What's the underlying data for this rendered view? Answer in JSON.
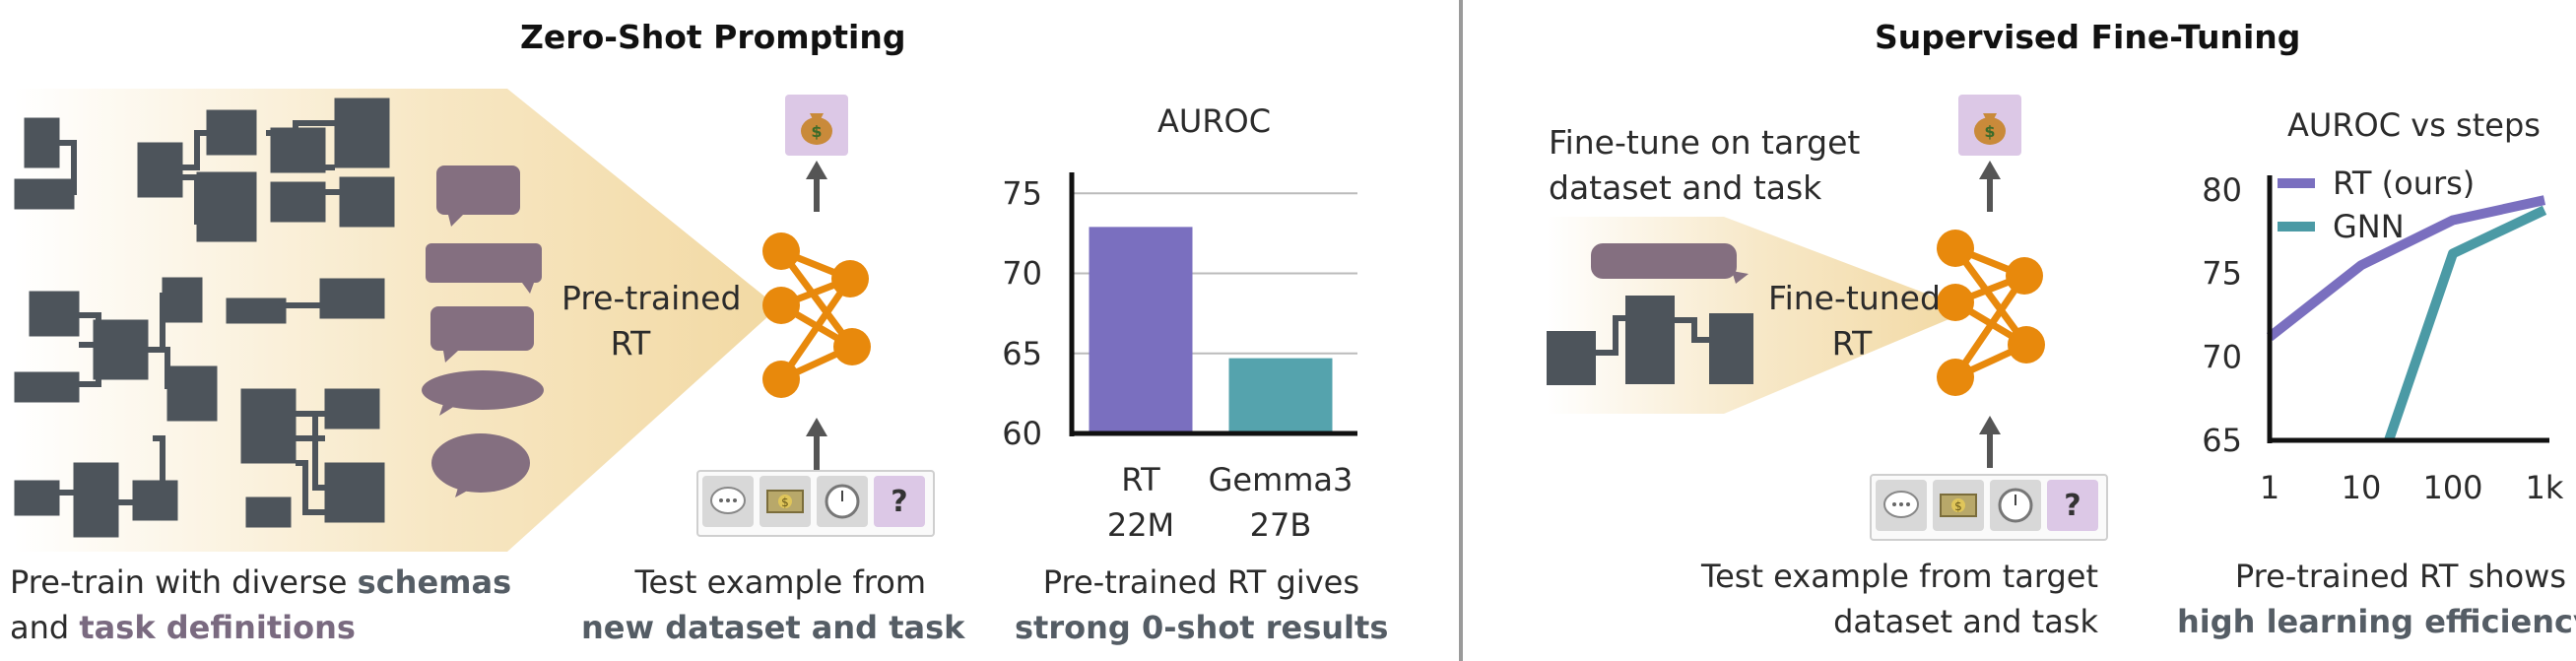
{
  "left": {
    "title": "Zero-Shot Prompting",
    "model_label": [
      "Pre-trained",
      "RT"
    ],
    "caption_pretrain": {
      "l1_pre": "Pre-train with diverse ",
      "l1_bold": "schemas",
      "l2_pre": "and ",
      "l2_bold": "task definitions"
    },
    "caption_test": {
      "l1": "Test example from",
      "l2_bold": "new dataset and task"
    },
    "caption_result": {
      "l1": "Pre-trained RT gives",
      "l2_bold": "strong 0-shot results"
    }
  },
  "right": {
    "title": "Supervised Fine-Tuning",
    "finetune_text": [
      "Fine-tune on target",
      "dataset and task"
    ],
    "model_label": [
      "Fine-tuned",
      "RT"
    ],
    "caption_test": {
      "l1": "Test example from target",
      "l2": "dataset and task"
    },
    "caption_result": {
      "l1": "Pre-trained RT shows",
      "l2_bold": "high learning efficiency"
    }
  },
  "icons": {
    "output": "money-bag-icon",
    "inputs": [
      "speech-bubble-icon",
      "money-icon",
      "clock-icon",
      "question-mark-icon"
    ],
    "question_mark": "?"
  },
  "colors": {
    "rt": "#7a6fbf",
    "gnn": "#4b9aa5",
    "gemma": "#55a3ad",
    "network": "#e8890c",
    "schema_block": "#4d545b",
    "bubble": "#846f80",
    "cone": "#f3dcaa",
    "output_box": "#dcc8e6"
  },
  "chart_data": [
    {
      "type": "bar",
      "title": "AUROC",
      "categories": [
        "RT 22M",
        "Gemma3 27B"
      ],
      "category_lines": [
        [
          "RT",
          "22M"
        ],
        [
          "Gemma3",
          "27B"
        ]
      ],
      "values": [
        72.9,
        64.7
      ],
      "ylim": [
        60,
        76
      ],
      "yticks": [
        60,
        65,
        70,
        75
      ],
      "grid": true
    },
    {
      "type": "line",
      "title": "AUROC vs steps",
      "x": [
        1,
        10,
        100,
        1000
      ],
      "xtick_labels": [
        "1",
        "10",
        "100",
        "1k"
      ],
      "xscale": "log",
      "ylim": [
        65,
        80
      ],
      "yticks": [
        65,
        70,
        75,
        80
      ],
      "legend": "top-left",
      "series": [
        {
          "name": "RT (ours)",
          "x": [
            1,
            10,
            100,
            1000
          ],
          "values": [
            71.2,
            75.5,
            78.2,
            79.4
          ]
        },
        {
          "name": "GNN",
          "x": [
            20,
            100,
            1000
          ],
          "values": [
            65.0,
            76.2,
            78.8
          ]
        }
      ]
    }
  ]
}
